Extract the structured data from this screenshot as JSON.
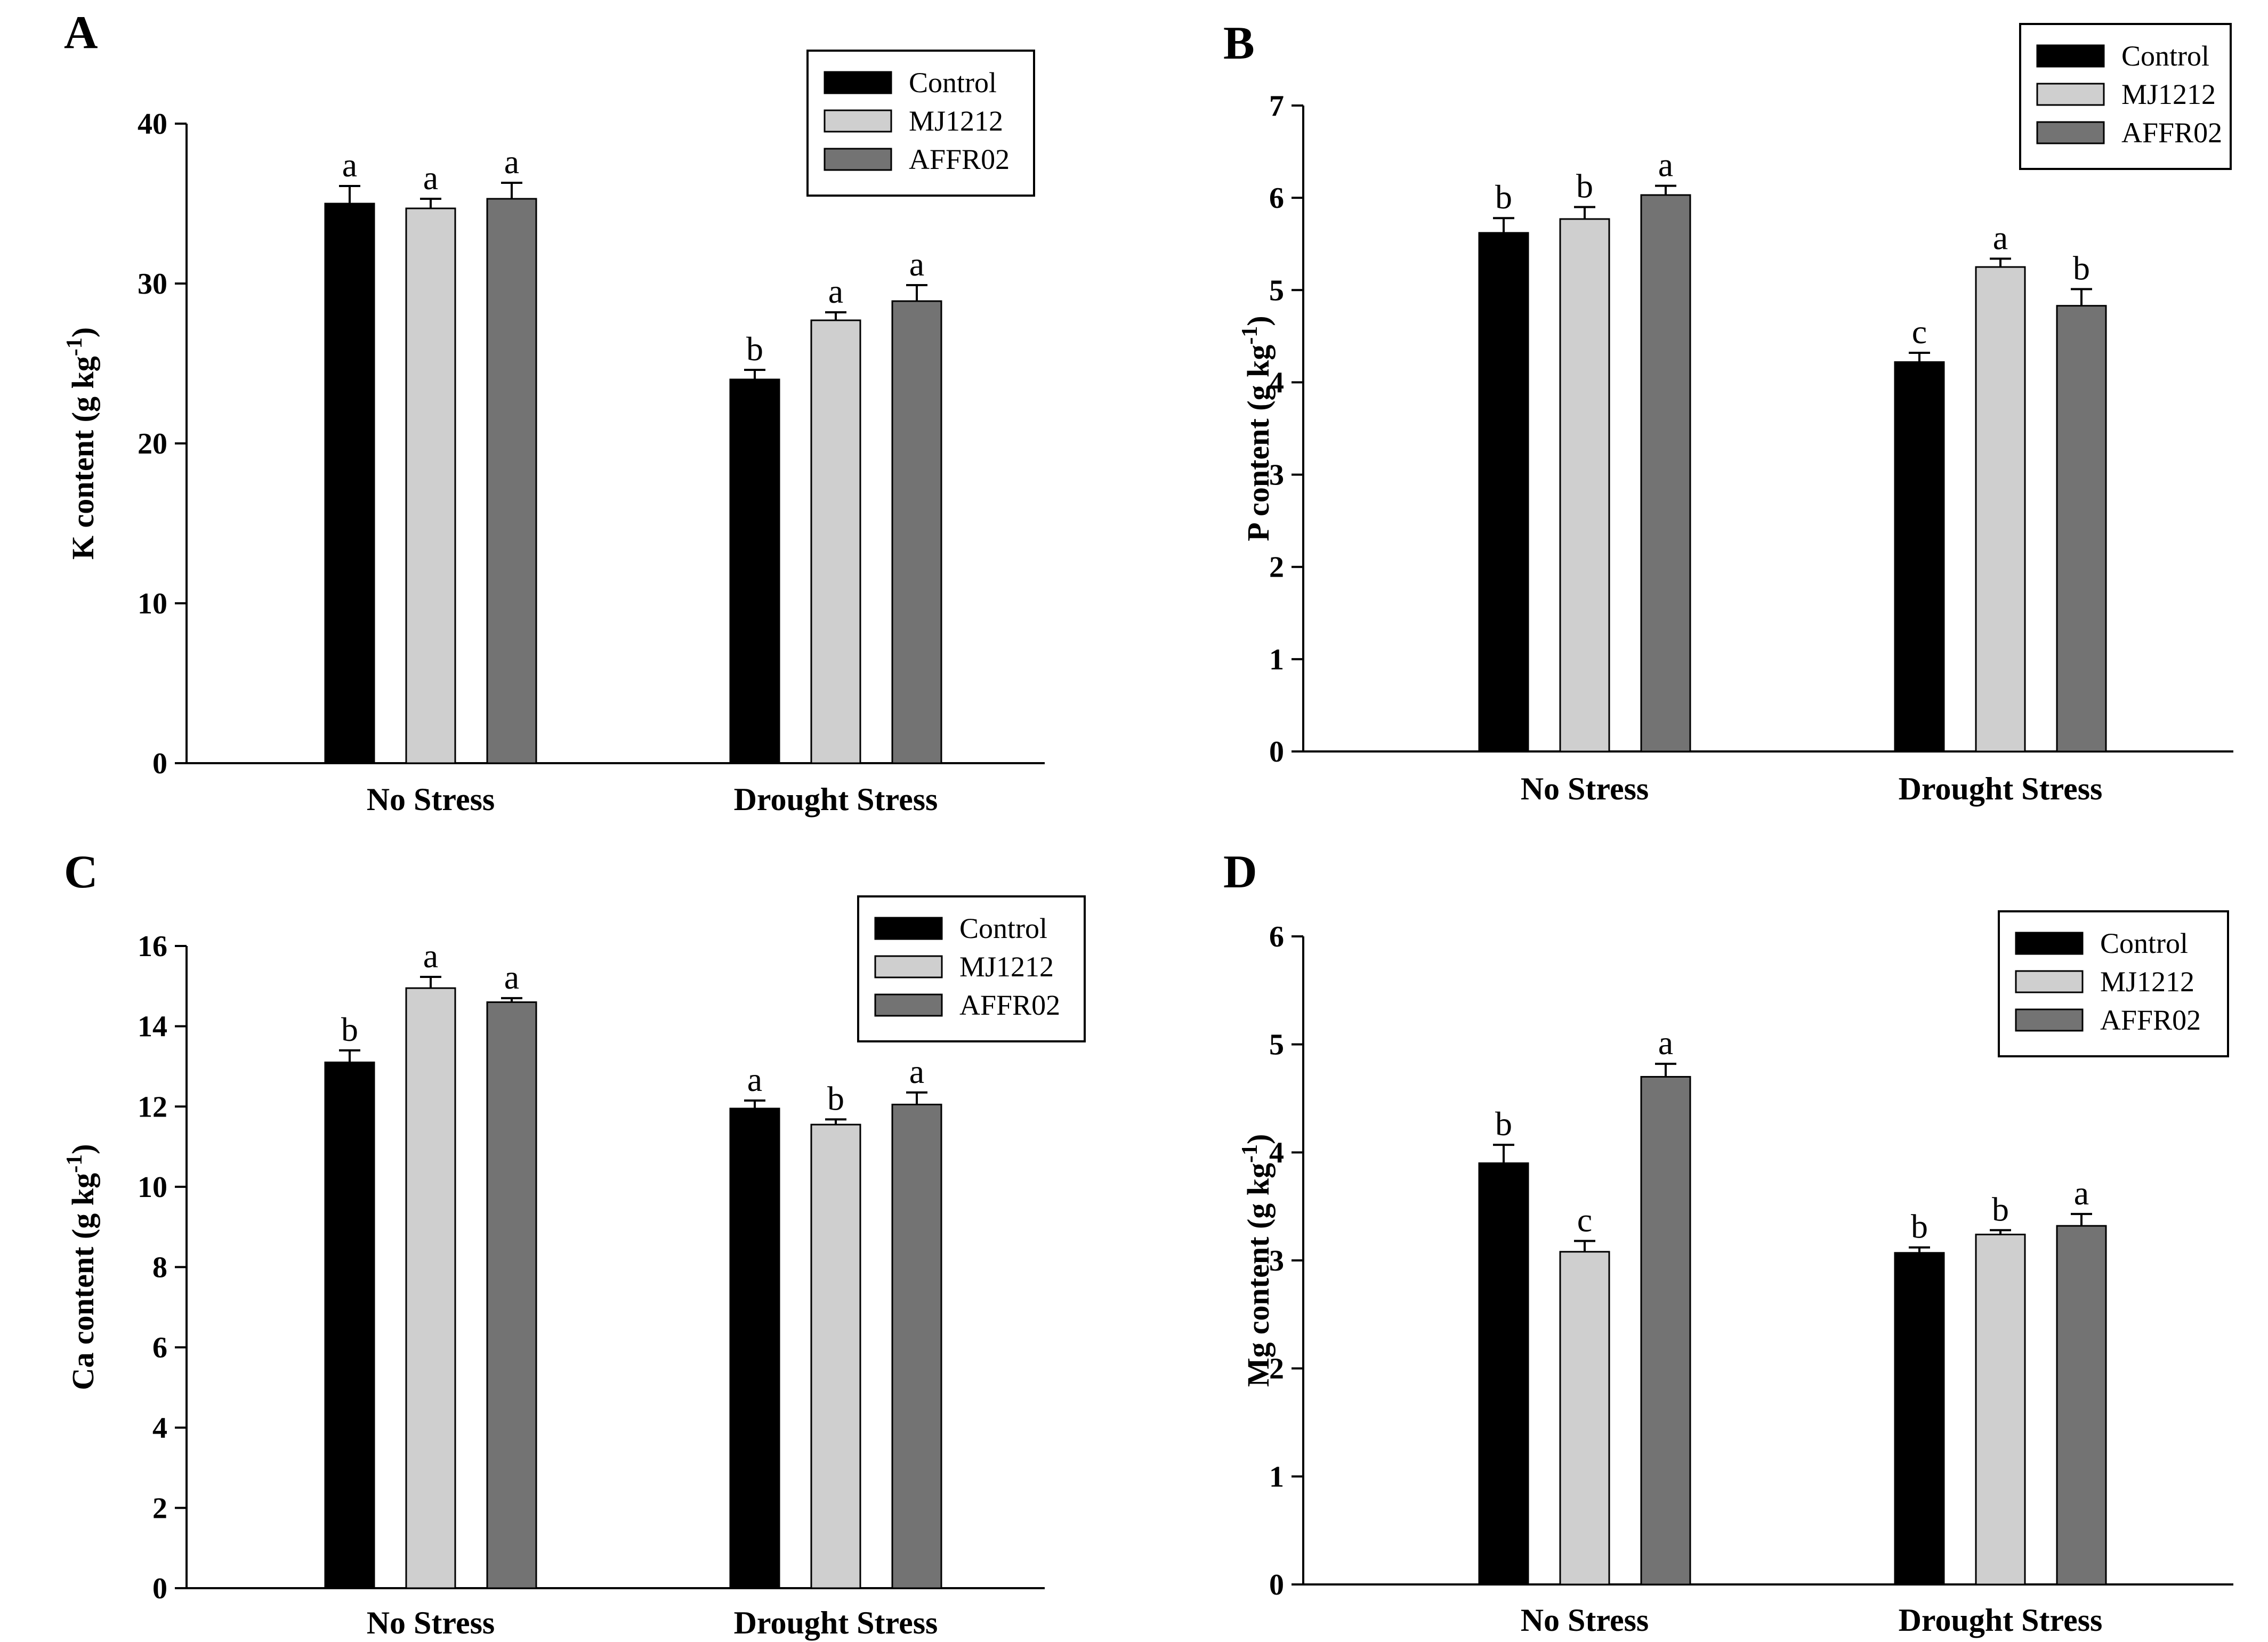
{
  "figure": {
    "series_colors": {
      "Control": "#000000",
      "MJ1212": "#cfcfcf",
      "AFFR02": "#737373"
    }
  },
  "chart_data": [
    {
      "panel": "A",
      "type": "bar",
      "ylabel": "K content (g kg-1)",
      "ylabel_parts": {
        "main": "K content (g kg",
        "sup": "-1",
        "end": ")"
      },
      "ylim": [
        0,
        40
      ],
      "yticks": [
        0,
        10,
        20,
        30,
        40
      ],
      "categories": [
        "No Stress",
        "Drought Stress"
      ],
      "legend": [
        "Control",
        "MJ1212",
        "AFFR02"
      ],
      "legend_position": "top-right",
      "series": [
        {
          "name": "Control",
          "values": [
            35.0,
            24.0
          ],
          "errors": [
            1.1,
            0.6
          ],
          "letters": [
            "a",
            "b"
          ]
        },
        {
          "name": "MJ1212",
          "values": [
            34.7,
            27.7
          ],
          "errors": [
            0.6,
            0.5
          ],
          "letters": [
            "a",
            "a"
          ]
        },
        {
          "name": "AFFR02",
          "values": [
            35.3,
            28.9
          ],
          "errors": [
            1.0,
            1.0
          ],
          "letters": [
            "a",
            "a"
          ]
        }
      ]
    },
    {
      "panel": "B",
      "type": "bar",
      "ylabel": "P content (g kg-1)",
      "ylabel_parts": {
        "main": "P content (g kg",
        "sup": "-1",
        "end": ")"
      },
      "ylim": [
        0,
        7
      ],
      "yticks": [
        0,
        1,
        2,
        3,
        4,
        5,
        6,
        7
      ],
      "categories": [
        "No Stress",
        "Drought Stress"
      ],
      "legend": [
        "Control",
        "MJ1212",
        "AFFR02"
      ],
      "legend_position": "top-right",
      "series": [
        {
          "name": "Control",
          "values": [
            5.62,
            4.22
          ],
          "errors": [
            0.16,
            0.1
          ],
          "letters": [
            "b",
            "c"
          ]
        },
        {
          "name": "MJ1212",
          "values": [
            5.77,
            5.25
          ],
          "errors": [
            0.13,
            0.09
          ],
          "letters": [
            "b",
            "a"
          ]
        },
        {
          "name": "AFFR02",
          "values": [
            6.03,
            4.83
          ],
          "errors": [
            0.1,
            0.18
          ],
          "letters": [
            "a",
            "b"
          ]
        }
      ]
    },
    {
      "panel": "C",
      "type": "bar",
      "ylabel": "Ca content (g kg-1)",
      "ylabel_parts": {
        "main": "Ca content (g kg",
        "sup": "-1",
        "end": ")"
      },
      "ylim": [
        0,
        16
      ],
      "yticks": [
        0,
        2,
        4,
        6,
        8,
        10,
        12,
        14,
        16
      ],
      "categories": [
        "No Stress",
        "Drought Stress"
      ],
      "legend": [
        "Control",
        "MJ1212",
        "AFFR02"
      ],
      "legend_position": "top-right",
      "series": [
        {
          "name": "Control",
          "values": [
            13.1,
            11.95
          ],
          "errors": [
            0.3,
            0.2
          ],
          "letters": [
            "b",
            "a"
          ]
        },
        {
          "name": "MJ1212",
          "values": [
            14.95,
            11.55
          ],
          "errors": [
            0.28,
            0.13
          ],
          "letters": [
            "a",
            "b"
          ]
        },
        {
          "name": "AFFR02",
          "values": [
            14.6,
            12.05
          ],
          "errors": [
            0.1,
            0.3
          ],
          "letters": [
            "a",
            "a"
          ]
        }
      ]
    },
    {
      "panel": "D",
      "type": "bar",
      "ylabel": "Mg content (g kg-1)",
      "ylabel_parts": {
        "main": "Mg content (g kg",
        "sup": "-1",
        "end": ")"
      },
      "ylim": [
        0,
        6
      ],
      "yticks": [
        0,
        1,
        2,
        3,
        4,
        5,
        6
      ],
      "categories": [
        "No Stress",
        "Drought Stress"
      ],
      "legend": [
        "Control",
        "MJ1212",
        "AFFR02"
      ],
      "legend_position": "top-right",
      "series": [
        {
          "name": "Control",
          "values": [
            3.9,
            3.07
          ],
          "errors": [
            0.17,
            0.05
          ],
          "letters": [
            "b",
            "b"
          ]
        },
        {
          "name": "MJ1212",
          "values": [
            3.08,
            3.24
          ],
          "errors": [
            0.1,
            0.04
          ],
          "letters": [
            "c",
            "b"
          ]
        },
        {
          "name": "AFFR02",
          "values": [
            4.7,
            3.32
          ],
          "errors": [
            0.12,
            0.11
          ],
          "letters": [
            "a",
            "a"
          ]
        }
      ]
    }
  ]
}
